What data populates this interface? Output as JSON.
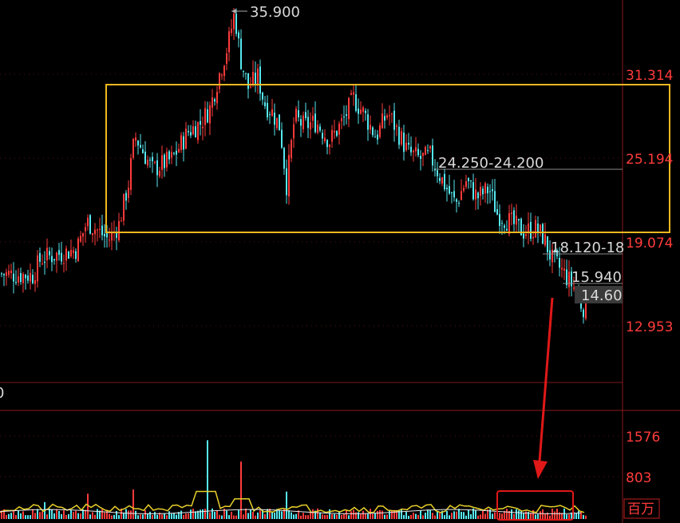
{
  "chart_data": {
    "type": "candlestick",
    "price_axis": {
      "ticks": [
        "31.314",
        "25.194",
        "19.074",
        "12.953"
      ],
      "tick_values": [
        31.314,
        25.194,
        19.074,
        12.953
      ],
      "color": "#ff3b3b"
    },
    "volume_axis": {
      "ticks": [
        "1576",
        "803"
      ],
      "tick_values": [
        1576,
        803
      ],
      "unit": "百万"
    },
    "annotations": {
      "high": "35.900",
      "zone_a": "24.250-24.200",
      "zone_b": "18.120-18",
      "zone_c": "15.940",
      "zone_d": "14.60",
      "left_cut": "0"
    },
    "price_path": [
      [
        0,
        16.8
      ],
      [
        40,
        16.7
      ],
      [
        50,
        17.9
      ],
      [
        95,
        18.6
      ],
      [
        108,
        20.6
      ],
      [
        135,
        19.3
      ],
      [
        148,
        20.4
      ],
      [
        160,
        23.4
      ],
      [
        168,
        26.9
      ],
      [
        190,
        24.4
      ],
      [
        215,
        25.2
      ],
      [
        235,
        27.2
      ],
      [
        250,
        27.8
      ],
      [
        262,
        28.9
      ],
      [
        272,
        31.0
      ],
      [
        285,
        33.6
      ],
      [
        293,
        35.9
      ],
      [
        300,
        32.6
      ],
      [
        310,
        30.4
      ],
      [
        322,
        31.2
      ],
      [
        330,
        29.3
      ],
      [
        340,
        28.6
      ],
      [
        350,
        27.5
      ],
      [
        358,
        23.3
      ],
      [
        368,
        28.2
      ],
      [
        380,
        27.6
      ],
      [
        395,
        27.9
      ],
      [
        412,
        26.5
      ],
      [
        428,
        27.9
      ],
      [
        442,
        29.6
      ],
      [
        455,
        28.5
      ],
      [
        470,
        26.8
      ],
      [
        485,
        28.6
      ],
      [
        498,
        27.1
      ],
      [
        510,
        25.7
      ],
      [
        525,
        25.2
      ],
      [
        538,
        25.4
      ],
      [
        550,
        24.0
      ],
      [
        560,
        22.9
      ],
      [
        570,
        21.9
      ],
      [
        583,
        23.6
      ],
      [
        597,
        22.4
      ],
      [
        612,
        23.0
      ],
      [
        622,
        21.2
      ],
      [
        640,
        20.5
      ],
      [
        655,
        19.9
      ],
      [
        670,
        20.1
      ],
      [
        680,
        19.5
      ],
      [
        690,
        17.9
      ],
      [
        705,
        16.9
      ],
      [
        718,
        15.8
      ],
      [
        728,
        14.5
      ],
      [
        735,
        14.2
      ]
    ],
    "volume_spikes": [
      {
        "x": 258,
        "value": 1495
      },
      {
        "x": 301,
        "value": 1090
      },
      {
        "x": 166,
        "value": 560
      },
      {
        "x": 358,
        "value": 520
      },
      {
        "x": 110,
        "value": 480
      },
      {
        "x": 55,
        "value": 320
      },
      {
        "x": 735,
        "value": 300
      }
    ],
    "colors": {
      "up": "#ff3b3b",
      "down": "#56e8f0",
      "box": "#f0b820",
      "volume_box": "#e01818",
      "arrow": "#e01818",
      "ma_yellow": "#e8d02a",
      "grid": "#5a1010"
    }
  }
}
